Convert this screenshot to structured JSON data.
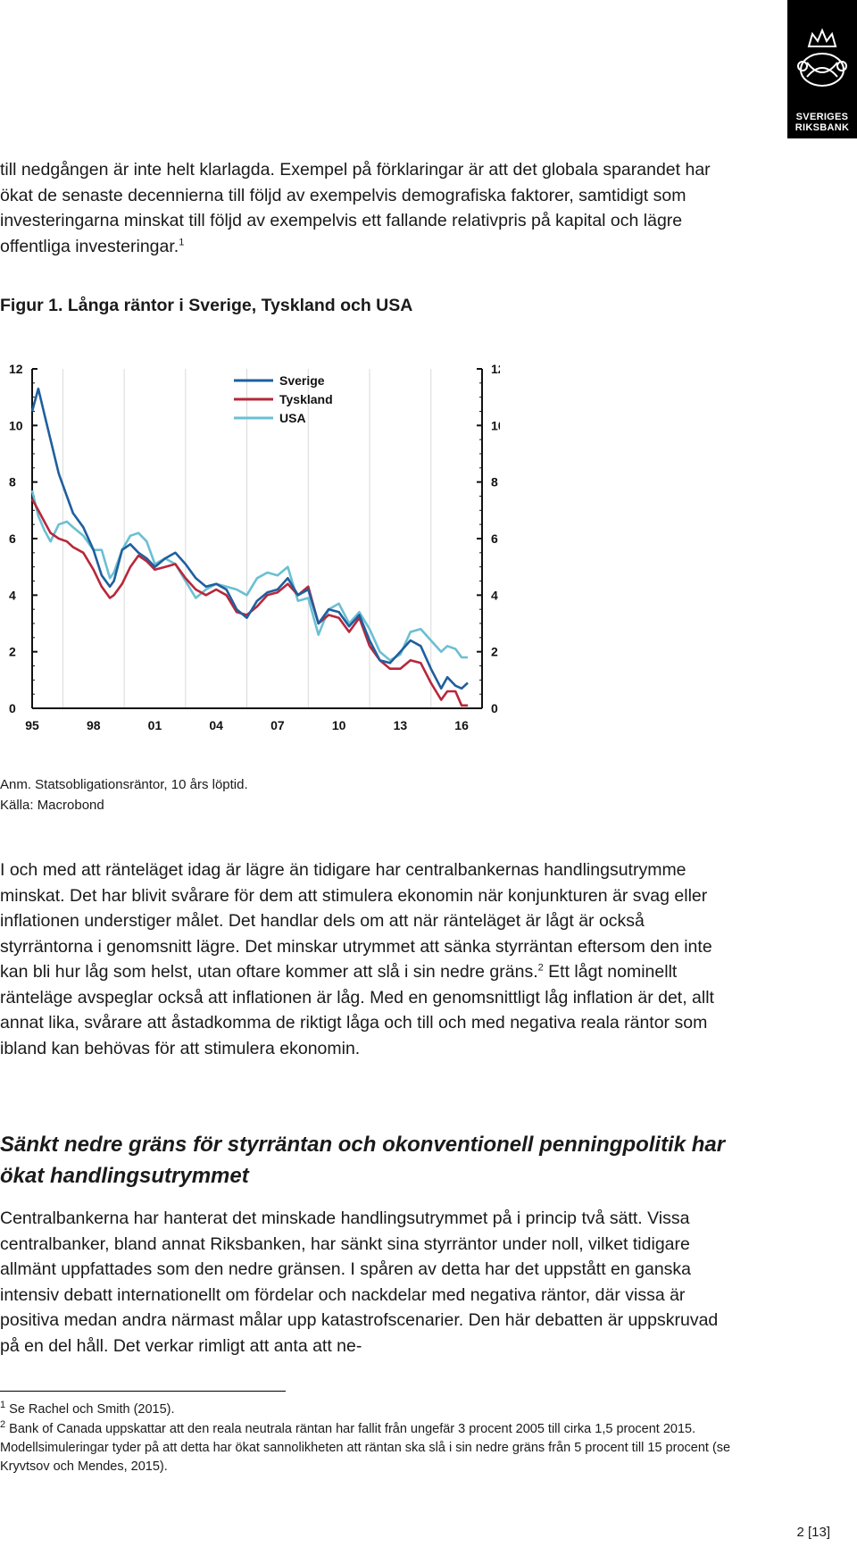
{
  "logo": {
    "text": "SVERIGES RIKSBANK",
    "line1": "SVERIGES",
    "line2": "RIKSBANK"
  },
  "para1": "till nedgången är inte helt klarlagda. Exempel på förklaringar är att det globala sparandet har ökat de senaste decennierna till följd av exempelvis demografiska faktorer, samtidigt som investeringarna minskat till följd av exempelvis ett fallande relativpris på kapital och lägre offentliga investeringar.",
  "para1_sup": "1",
  "figure_title": "Figur 1. Långa räntor i Sverige, Tyskland och USA",
  "chart_data": {
    "type": "line",
    "title": "",
    "x_tick_labels": [
      "95",
      "98",
      "01",
      "04",
      "07",
      "10",
      "13",
      "16"
    ],
    "y_ticks": [
      0,
      2,
      4,
      6,
      8,
      10,
      12
    ],
    "ylim": [
      0,
      12
    ],
    "xlim": [
      1995,
      2017
    ],
    "grid": "vertical",
    "legend_position": "top-center",
    "series": [
      {
        "name": "Sverige",
        "color": "#1f5f9e",
        "x": [
          1995.0,
          1995.3,
          1995.6,
          1995.9,
          1996.3,
          1996.7,
          1997.0,
          1997.5,
          1998.0,
          1998.4,
          1998.8,
          1999.0,
          1999.4,
          1999.8,
          2000.2,
          2000.6,
          2001.0,
          2001.5,
          2002.0,
          2002.5,
          2003.0,
          2003.5,
          2004.0,
          2004.5,
          2005.0,
          2005.5,
          2006.0,
          2006.5,
          2007.0,
          2007.5,
          2008.0,
          2008.5,
          2009.0,
          2009.5,
          2010.0,
          2010.5,
          2011.0,
          2011.5,
          2012.0,
          2012.5,
          2013.0,
          2013.5,
          2014.0,
          2014.5,
          2015.0,
          2015.3,
          2015.7,
          2016.0,
          2016.3
        ],
        "y": [
          10.5,
          11.3,
          10.4,
          9.5,
          8.3,
          7.5,
          6.9,
          6.4,
          5.6,
          4.7,
          4.3,
          4.5,
          5.6,
          5.8,
          5.5,
          5.3,
          5.0,
          5.3,
          5.5,
          5.1,
          4.6,
          4.3,
          4.4,
          4.2,
          3.5,
          3.2,
          3.8,
          4.1,
          4.2,
          4.6,
          4.0,
          4.2,
          3.0,
          3.5,
          3.4,
          2.9,
          3.3,
          2.4,
          1.7,
          1.6,
          2.0,
          2.4,
          2.2,
          1.4,
          0.7,
          1.1,
          0.8,
          0.7,
          0.9
        ]
      },
      {
        "name": "Tyskland",
        "color": "#b8273a",
        "x": [
          1995.0,
          1995.3,
          1995.6,
          1995.9,
          1996.3,
          1996.7,
          1997.0,
          1997.5,
          1998.0,
          1998.4,
          1998.8,
          1999.0,
          1999.4,
          1999.8,
          2000.2,
          2000.6,
          2001.0,
          2001.5,
          2002.0,
          2002.5,
          2003.0,
          2003.5,
          2004.0,
          2004.5,
          2005.0,
          2005.5,
          2006.0,
          2006.5,
          2007.0,
          2007.5,
          2008.0,
          2008.5,
          2009.0,
          2009.5,
          2010.0,
          2010.5,
          2011.0,
          2011.5,
          2012.0,
          2012.5,
          2013.0,
          2013.5,
          2014.0,
          2014.5,
          2015.0,
          2015.3,
          2015.7,
          2016.0,
          2016.3
        ],
        "y": [
          7.4,
          7.0,
          6.6,
          6.2,
          6.0,
          5.9,
          5.7,
          5.5,
          4.9,
          4.3,
          3.9,
          4.0,
          4.4,
          5.0,
          5.4,
          5.2,
          4.9,
          5.0,
          5.1,
          4.6,
          4.2,
          4.0,
          4.2,
          4.0,
          3.4,
          3.3,
          3.6,
          4.0,
          4.1,
          4.4,
          4.0,
          4.3,
          3.0,
          3.3,
          3.2,
          2.7,
          3.2,
          2.2,
          1.7,
          1.4,
          1.4,
          1.7,
          1.6,
          0.9,
          0.3,
          0.6,
          0.6,
          0.1,
          0.1
        ]
      },
      {
        "name": "USA",
        "color": "#6bbfd3",
        "x": [
          1995.0,
          1995.3,
          1995.6,
          1995.9,
          1996.3,
          1996.7,
          1997.0,
          1997.5,
          1998.0,
          1998.4,
          1998.8,
          1999.0,
          1999.4,
          1999.8,
          2000.2,
          2000.6,
          2001.0,
          2001.5,
          2002.0,
          2002.5,
          2003.0,
          2003.5,
          2004.0,
          2004.5,
          2005.0,
          2005.5,
          2006.0,
          2006.5,
          2007.0,
          2007.5,
          2008.0,
          2008.5,
          2009.0,
          2009.5,
          2010.0,
          2010.5,
          2011.0,
          2011.5,
          2012.0,
          2012.5,
          2013.0,
          2013.5,
          2014.0,
          2014.5,
          2015.0,
          2015.3,
          2015.7,
          2016.0,
          2016.3
        ],
        "y": [
          7.7,
          6.8,
          6.3,
          5.9,
          6.5,
          6.6,
          6.4,
          6.1,
          5.6,
          5.6,
          4.6,
          4.8,
          5.6,
          6.1,
          6.2,
          5.9,
          5.1,
          5.3,
          5.1,
          4.5,
          3.9,
          4.2,
          4.4,
          4.3,
          4.2,
          4.0,
          4.6,
          4.8,
          4.7,
          5.0,
          3.8,
          3.9,
          2.6,
          3.5,
          3.7,
          3.0,
          3.4,
          2.8,
          2.0,
          1.7,
          1.9,
          2.7,
          2.8,
          2.4,
          2.0,
          2.2,
          2.1,
          1.8,
          1.8
        ]
      }
    ]
  },
  "note1": "Anm. Statsobligationsräntor, 10 års löptid.",
  "note2": "Källa: Macrobond",
  "para2a": "I och med att ränteläget idag är lägre än tidigare har centralbankernas handlingsutrymme minskat. Det har blivit svårare för dem att stimulera ekonomin när konjunkturen är svag eller inflationen understiger målet. Det handlar dels om att när ränteläget är lågt är också styrräntorna i genomsnitt lägre. Det minskar utrymmet att sänka styrräntan eftersom den inte kan bli hur låg som helst, utan oftare kommer att slå i sin nedre gräns.",
  "para2_sup": "2",
  "para2b": " Ett lågt nominellt ränteläge avspeglar också att inflationen är låg. Med en genomsnittligt låg inflation är det, allt annat lika, svårare att åstadkomma de riktigt låga och till och med negativa reala räntor som ibland kan behövas för att stimulera ekonomin.",
  "heading": "Sänkt nedre gräns för styrräntan och okonventionell penningpolitik har ökat handlingsutrymmet",
  "para3": "Centralbankerna har hanterat det minskade handlingsutrymmet på i princip två sätt. Vissa centralbanker, bland annat Riksbanken, har sänkt sina styrräntor under noll, vilket tidigare allmänt uppfattades som den nedre gränsen. I spåren av detta har det uppstått en ganska intensiv debatt internationellt om fördelar och nackdelar med negativa räntor, där vissa är positiva medan andra närmast målar upp katastrofscenarier. Den här debatten är uppskruvad på en del håll. Det verkar rimligt att anta att ne-",
  "footnote1_num": "1",
  "footnote1": " Se Rachel och Smith (2015).",
  "footnote2_num": "2",
  "footnote2": " Bank of Canada uppskattar att den reala neutrala räntan har fallit från ungefär 3 procent 2005 till cirka 1,5 procent 2015. Modellsimuleringar tyder på att detta har ökat sannolikheten att räntan ska slå i sin nedre gräns från 5 procent till 15 procent (se Kryvtsov och Mendes, 2015).",
  "page_number": "2 [13]"
}
